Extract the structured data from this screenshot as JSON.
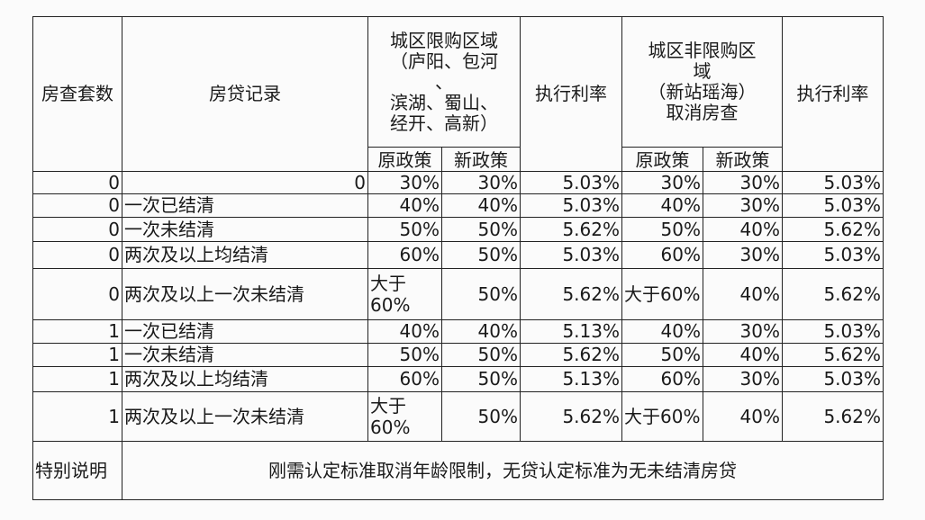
{
  "header": {
    "count": "房查套数",
    "record": "房贷记录",
    "restricted_zone": "城区限购区域\n（庐阳、包河\n、\n滨湖、蜀山、\n经开、高新）",
    "rate1": "执行利率",
    "unrestricted_zone": "城区非限购区\n域\n（新站瑶海）\n取消房查",
    "rate2": "执行利率",
    "old_policy": "原政策",
    "new_policy": "新政策"
  },
  "rows": [
    {
      "count": "0",
      "record": "0",
      "r_old": "30%",
      "r_new": "30%",
      "rate1": "5.03%",
      "u_old": "30%",
      "u_new": "30%",
      "rate2": "5.03%"
    },
    {
      "count": "0",
      "record": "一次已结清",
      "r_old": "40%",
      "r_new": "40%",
      "rate1": "5.03%",
      "u_old": "40%",
      "u_new": "30%",
      "rate2": "5.03%"
    },
    {
      "count": "0",
      "record": "一次未结清",
      "r_old": "50%",
      "r_new": "50%",
      "rate1": "5.62%",
      "u_old": "50%",
      "u_new": "40%",
      "rate2": "5.62%"
    },
    {
      "count": "0",
      "record": "两次及以上均结清",
      "r_old": "60%",
      "r_new": "50%",
      "rate1": "5.03%",
      "u_old": "60%",
      "u_new": "30%",
      "rate2": "5.03%"
    },
    {
      "count": "0",
      "record": "两次及以上一次未结清",
      "r_old": "大于\n60%",
      "r_new": "50%",
      "rate1": "5.62%",
      "u_old": "大于60%",
      "u_new": "40%",
      "rate2": "5.62%"
    },
    {
      "count": "1",
      "record": "一次已结清",
      "r_old": "40%",
      "r_new": "40%",
      "rate1": "5.13%",
      "u_old": "40%",
      "u_new": "30%",
      "rate2": "5.03%"
    },
    {
      "count": "1",
      "record": "一次未结清",
      "r_old": "50%",
      "r_new": "50%",
      "rate1": "5.62%",
      "u_old": "50%",
      "u_new": "40%",
      "rate2": "5.62%"
    },
    {
      "count": "1",
      "record": "两次及以上均结清",
      "r_old": "60%",
      "r_new": "50%",
      "rate1": "5.13%",
      "u_old": "60%",
      "u_new": "30%",
      "rate2": "5.03%"
    },
    {
      "count": "1",
      "record": "两次及以上一次未结清",
      "r_old": "大于\n60%",
      "r_new": "50%",
      "rate1": "5.62%",
      "u_old": "大于60%",
      "u_new": "40%",
      "rate2": "5.62%"
    }
  ],
  "remark": {
    "label": "特别说明",
    "text": "刚需认定标准取消年龄限制，无贷认定标准为无未结清房贷"
  }
}
